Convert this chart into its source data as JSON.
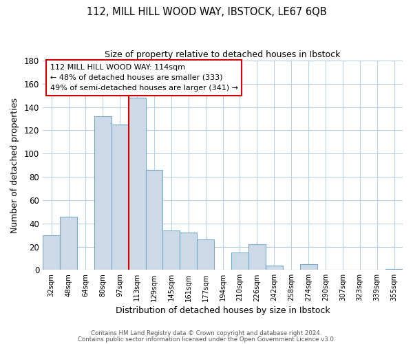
{
  "title_line1": "112, MILL HILL WOOD WAY, IBSTOCK, LE67 6QB",
  "title_line2": "Size of property relative to detached houses in Ibstock",
  "xlabel": "Distribution of detached houses by size in Ibstock",
  "ylabel": "Number of detached properties",
  "bar_labels": [
    "32sqm",
    "48sqm",
    "64sqm",
    "80sqm",
    "97sqm",
    "113sqm",
    "129sqm",
    "145sqm",
    "161sqm",
    "177sqm",
    "194sqm",
    "210sqm",
    "226sqm",
    "242sqm",
    "258sqm",
    "274sqm",
    "290sqm",
    "307sqm",
    "323sqm",
    "339sqm",
    "355sqm"
  ],
  "bar_values": [
    30,
    46,
    0,
    132,
    125,
    148,
    86,
    34,
    32,
    26,
    0,
    15,
    22,
    4,
    0,
    5,
    0,
    0,
    0,
    0,
    1
  ],
  "bar_color": "#ccd9e8",
  "bar_edge_color": "#7aaac8",
  "vline_color": "#cc0000",
  "annotation_title": "112 MILL HILL WOOD WAY: 114sqm",
  "annotation_line2": "← 48% of detached houses are smaller (333)",
  "annotation_line3": "49% of semi-detached houses are larger (341) →",
  "annotation_box_edge": "#cc0000",
  "ylim": [
    0,
    180
  ],
  "yticks": [
    0,
    20,
    40,
    60,
    80,
    100,
    120,
    140,
    160,
    180
  ],
  "footer_line1": "Contains HM Land Registry data © Crown copyright and database right 2024.",
  "footer_line2": "Contains public sector information licensed under the Open Government Licence v3.0."
}
